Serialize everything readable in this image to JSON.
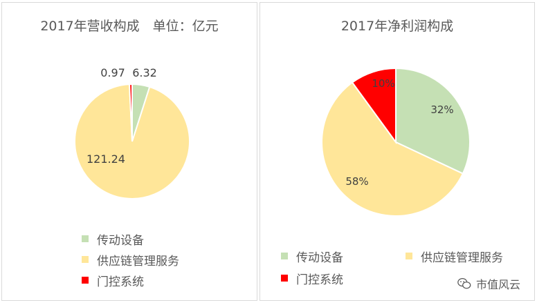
{
  "chart_data": [
    {
      "type": "pie",
      "title": "2017年营收构成　单位：亿元",
      "categories": [
        "传动设备",
        "供应链管理服务",
        "门控系统"
      ],
      "values": [
        6.32,
        121.24,
        0.97
      ],
      "data_labels": [
        "6.32",
        "121.24",
        "0.97"
      ],
      "colors": [
        "#c5e0b4",
        "#ffe699",
        "#ff0000"
      ],
      "legend": "bottom"
    },
    {
      "type": "pie",
      "title": "2017年净利润构成",
      "categories": [
        "传动设备",
        "供应链管理服务",
        "门控系统"
      ],
      "values": [
        32,
        58,
        10
      ],
      "data_labels": [
        "32%",
        "58%",
        "10%"
      ],
      "colors": [
        "#c5e0b4",
        "#ffe699",
        "#ff0000"
      ],
      "legend": "bottom"
    }
  ],
  "watermark": "市值风云"
}
